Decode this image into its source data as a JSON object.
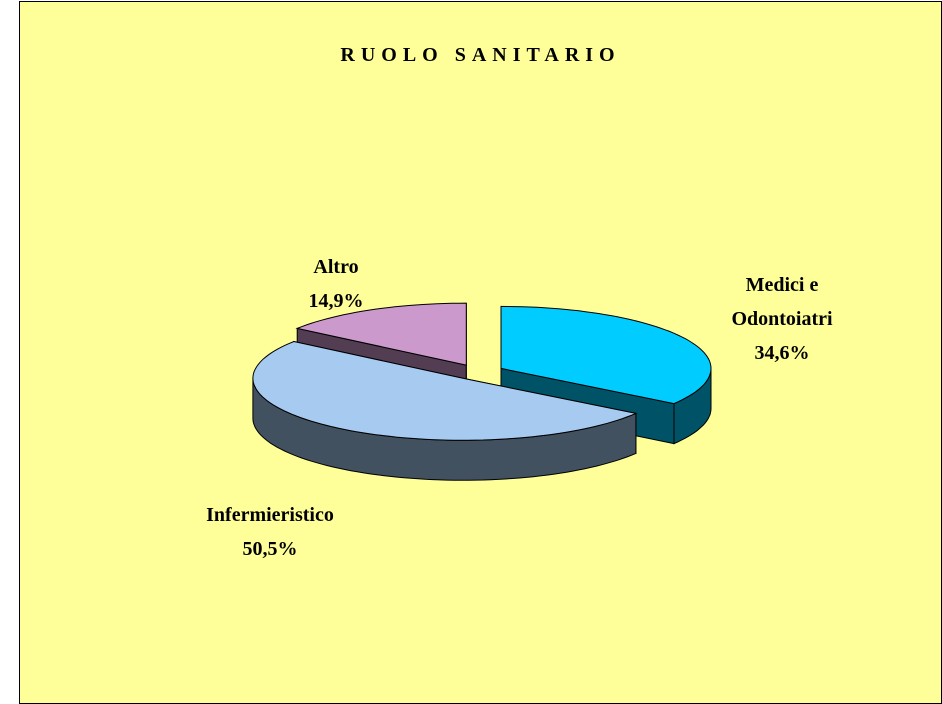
{
  "chart_data": {
    "type": "pie",
    "title": "RUOLO SANITARIO",
    "categories": [
      "Medici e Odontoiatri",
      "Infermieristico",
      "Altro"
    ],
    "values": [
      34.6,
      50.5,
      14.9
    ],
    "value_labels": [
      "34,6%",
      "50,5%",
      "14,9%"
    ],
    "colors": [
      "#00ccff",
      "#a6caf0",
      "#cc99cc"
    ]
  }
}
